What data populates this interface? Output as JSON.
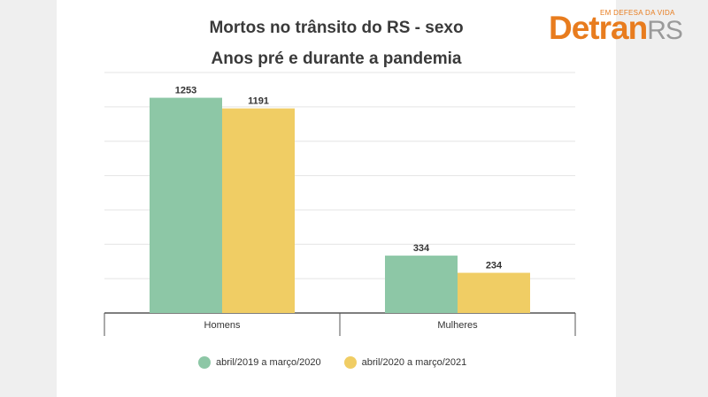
{
  "header": {
    "title_line1": "Mortos no trânsito do RS - sexo",
    "title_line2": "Anos pré e durante a pandemia"
  },
  "logo": {
    "tagline": "EM DEFESA DA VIDA",
    "word_main": "Detran",
    "word_suffix": "RS"
  },
  "colors": {
    "series1": "#8dc7a6",
    "series2": "#f0cd64",
    "logo_accent": "#e87c1e"
  },
  "chart_data": {
    "type": "bar",
    "title": "Mortos no trânsito do RS - sexo",
    "subtitle": "Anos pré e durante a pandemia",
    "categories": [
      "Homens",
      "Mulheres"
    ],
    "series": [
      {
        "name": "abril/2019 a março/2020",
        "values": [
          1253,
          334
        ]
      },
      {
        "name": "abril/2020 a março/2021",
        "values": [
          1191,
          234
        ]
      }
    ],
    "ylim": [
      0,
      1400
    ],
    "grid": true,
    "legend": "bottom"
  }
}
